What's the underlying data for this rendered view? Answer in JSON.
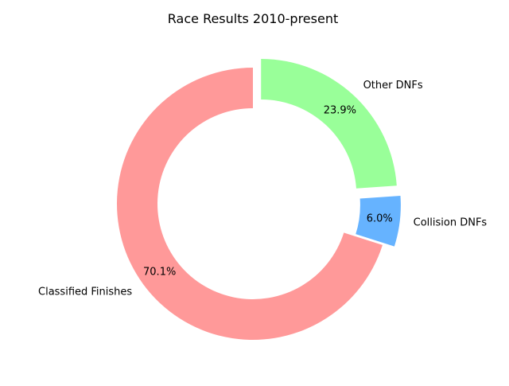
{
  "chart_data": {
    "type": "pie",
    "title": "Race Results 2010-present",
    "donut": true,
    "start_angle_deg": 90,
    "direction": "counterclockwise",
    "slices": [
      {
        "label": "Classified Finishes",
        "value": 70.1,
        "pct_label": "70.1%",
        "color": "#ff9999",
        "exploded": false
      },
      {
        "label": "Collision DNFs",
        "value": 6.0,
        "pct_label": "6.0%",
        "color": "#66b3ff",
        "exploded": true
      },
      {
        "label": "Other DNFs",
        "value": 23.9,
        "pct_label": "23.9%",
        "color": "#99ff99",
        "exploded": true
      }
    ]
  }
}
